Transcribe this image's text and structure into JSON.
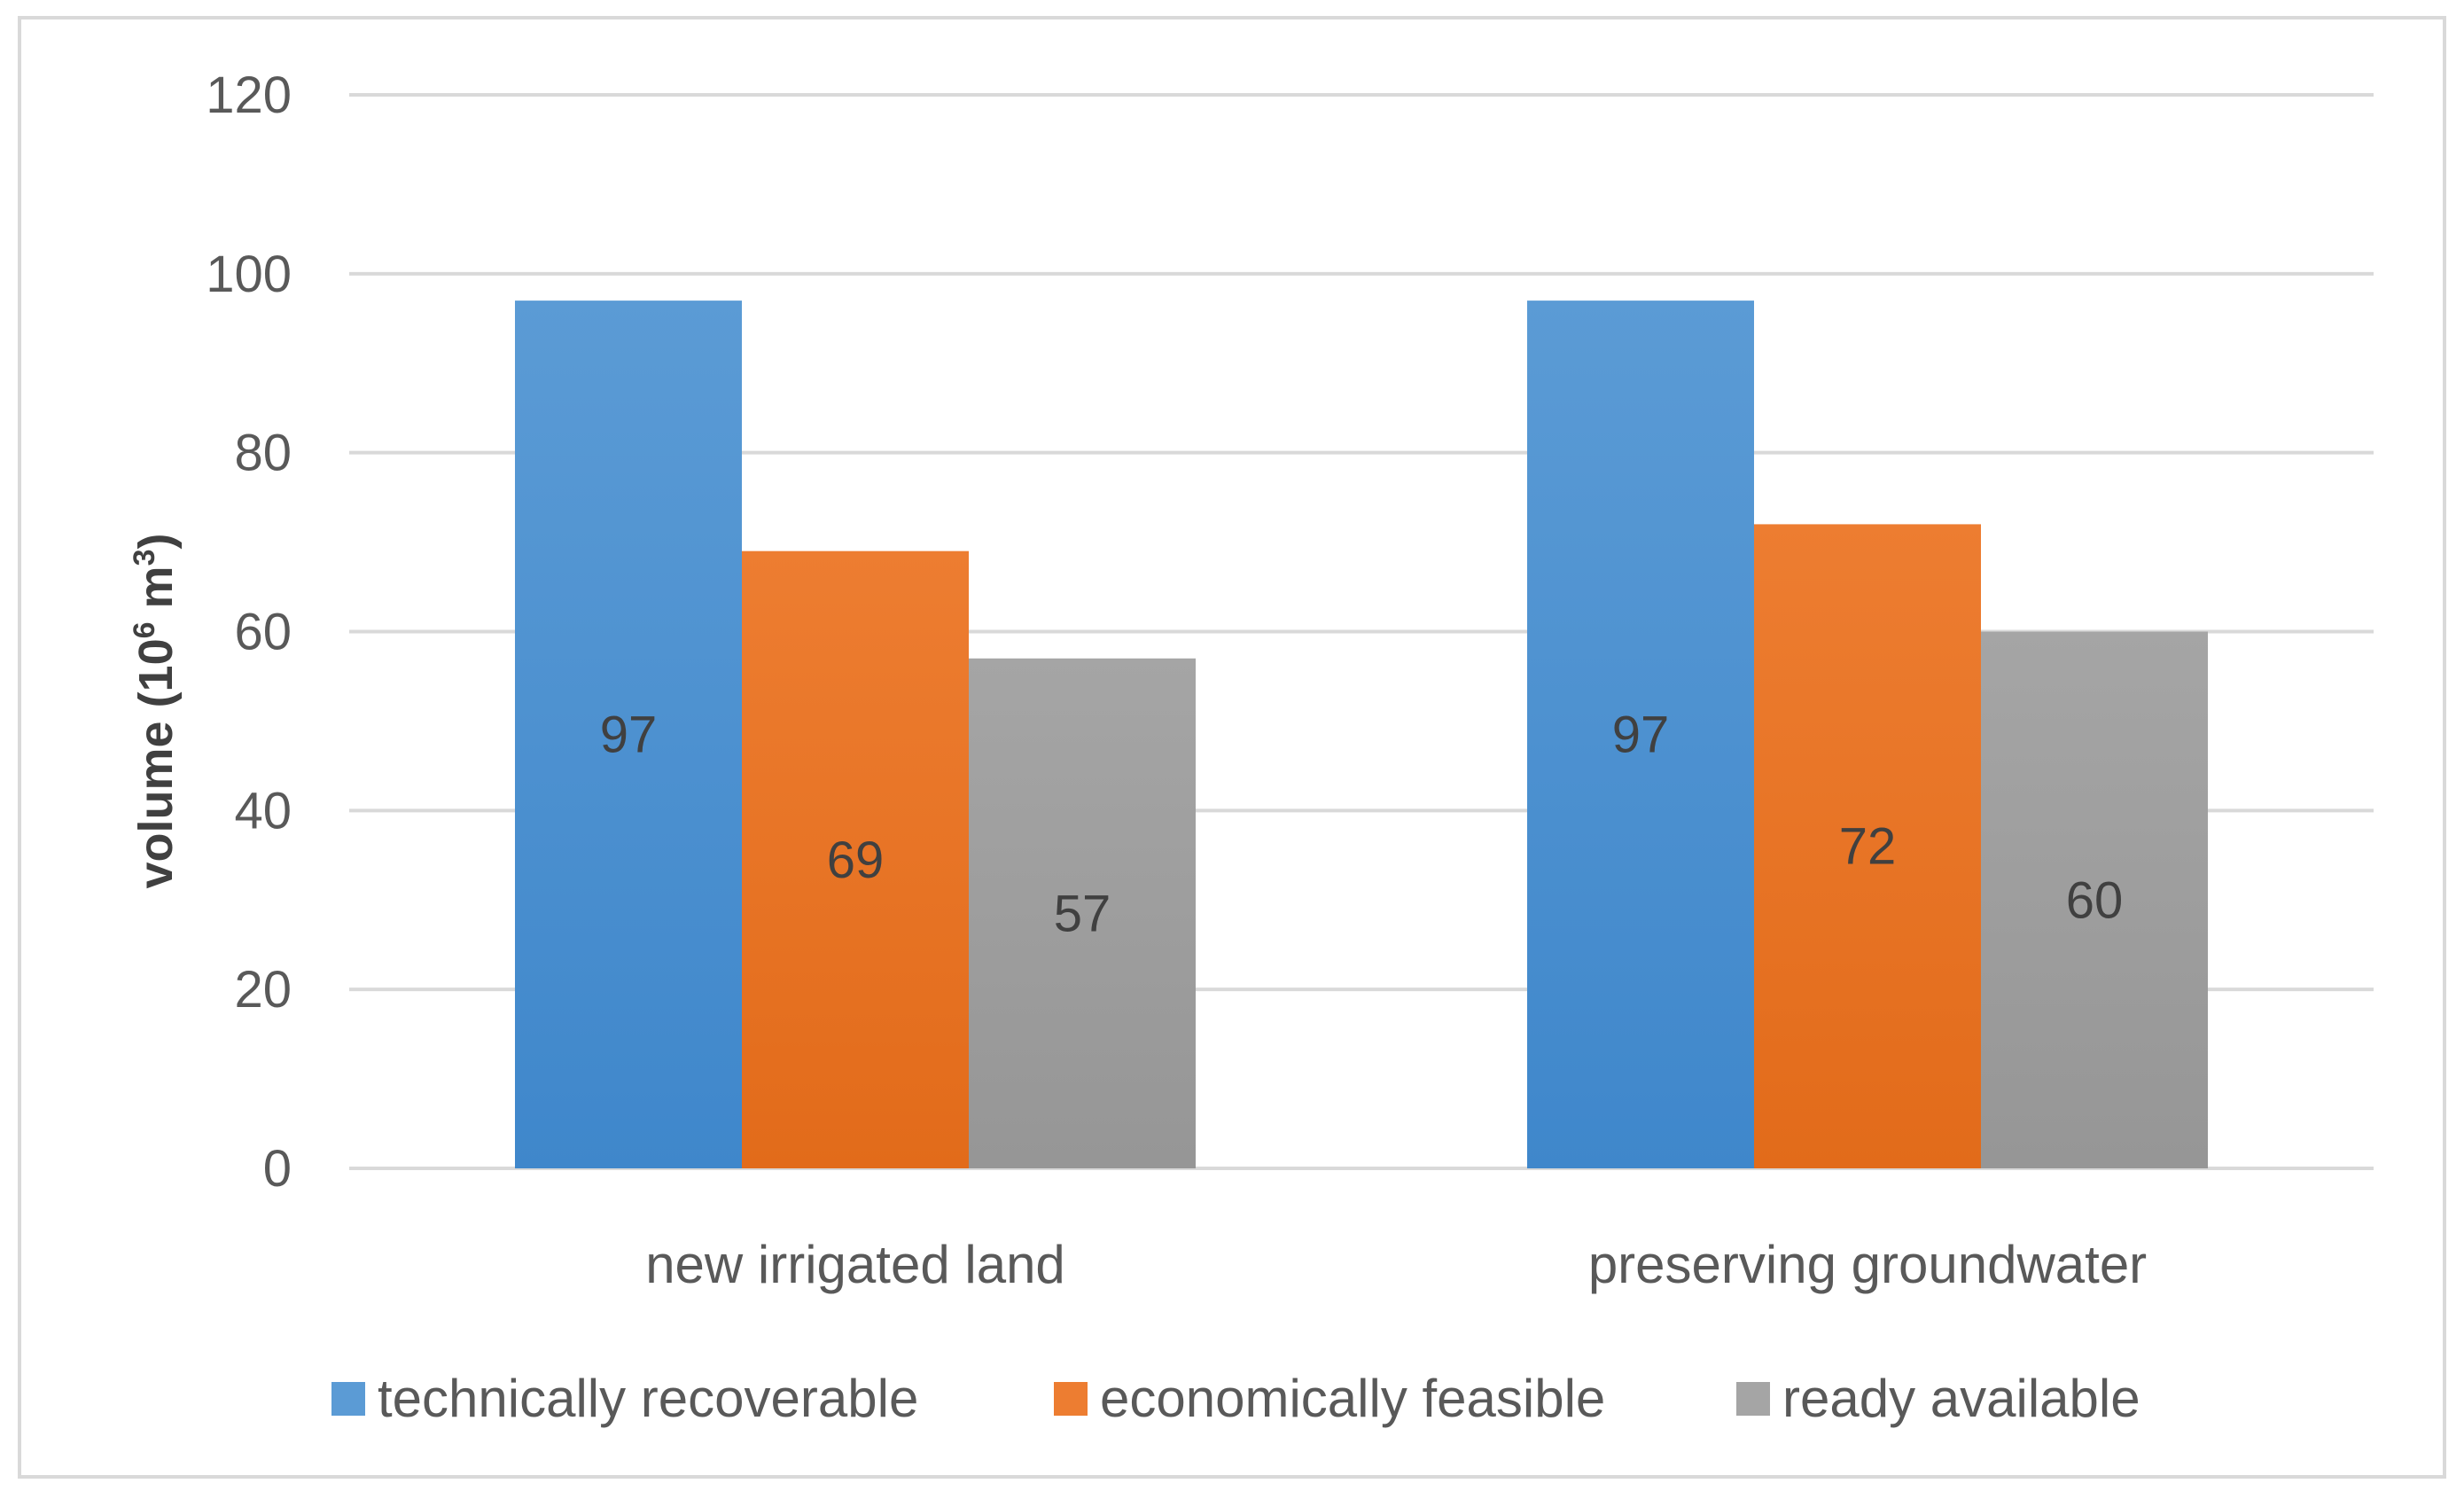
{
  "chart_data": {
    "type": "bar",
    "title": "",
    "xlabel": "",
    "ylabel": "volume (10",
    "ylabel_sup1": "6",
    "ylabel_mid": " m",
    "ylabel_sup2": "3",
    "ylabel_end": ")",
    "ylim": [
      0,
      120
    ],
    "yticks": [
      0,
      20,
      40,
      60,
      80,
      100,
      120
    ],
    "grid": true,
    "legend_position": "bottom",
    "categories": [
      "new irrigated land",
      "preserving groundwater"
    ],
    "series": [
      {
        "name": "technically recoverable",
        "values": [
          97,
          97
        ],
        "color": "#5b9bd5",
        "color_dark": "#3f87cb"
      },
      {
        "name": "economically feasible",
        "values": [
          69,
          72
        ],
        "color": "#ed7d31",
        "color_dark": "#e26b1a"
      },
      {
        "name": "ready available",
        "values": [
          57,
          60
        ],
        "color": "#a5a5a5",
        "color_dark": "#969696"
      }
    ]
  }
}
